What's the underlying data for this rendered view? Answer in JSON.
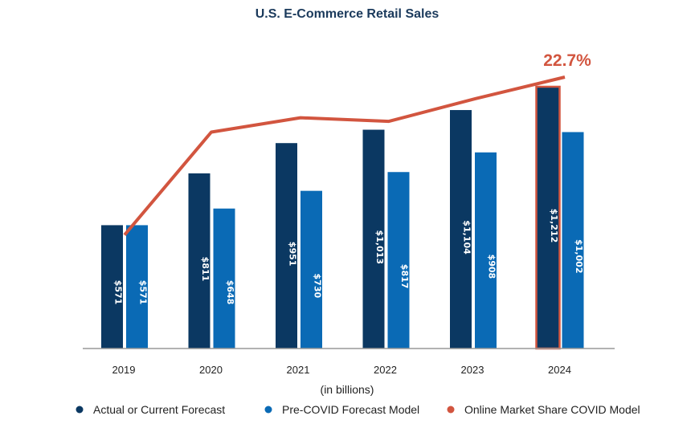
{
  "chart_data": {
    "type": "bar",
    "title": "U.S. E-Commerce Retail Sales",
    "unit_label": "(in billions)",
    "categories": [
      "2019",
      "2020",
      "2021",
      "2022",
      "2023",
      "2024"
    ],
    "series": [
      {
        "name": "Actual or Current Forecast",
        "color": "#0b3862",
        "values": [
          571,
          811,
          951,
          1013,
          1104,
          1212
        ],
        "labels": [
          "$571",
          "$811",
          "$951",
          "$1,013",
          "$1,104",
          "$1,212"
        ]
      },
      {
        "name": "Pre-COVID Forecast Model",
        "color": "#0a6ab5",
        "values": [
          571,
          648,
          730,
          817,
          908,
          1002
        ],
        "labels": [
          "$571",
          "$648",
          "$730",
          "$817",
          "$908",
          "$1,002"
        ]
      }
    ],
    "line_series": {
      "name": "Online Market Share COVID Model",
      "color": "#d2553f",
      "type": "line",
      "values_estimated_percent": [
        9.5,
        18.1,
        19.3,
        19.0,
        20.9,
        22.7
      ]
    },
    "annotation": "22.7%",
    "highlight_category": "2024",
    "ylim": [
      0,
      1212
    ],
    "grid": false,
    "legend_position": "bottom"
  }
}
